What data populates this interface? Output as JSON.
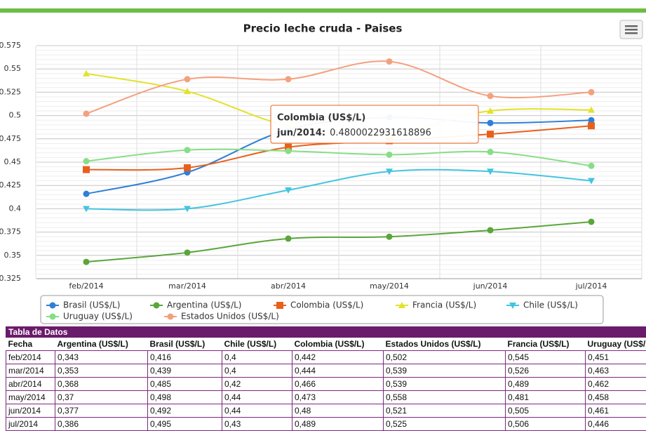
{
  "chart_data": {
    "type": "line",
    "title": "Precio leche cruda - Paises",
    "categories": [
      "feb/2014",
      "mar/2014",
      "abr/2014",
      "may/2014",
      "jun/2014",
      "jul/2014"
    ],
    "ylim": [
      0.325,
      0.575
    ],
    "yticks": [
      0.325,
      0.35,
      0.375,
      0.4,
      0.425,
      0.45,
      0.475,
      0.5,
      0.525,
      0.55,
      0.575
    ],
    "grid": true,
    "series": [
      {
        "name": "Brasil (US$/L)",
        "color": "#2f7ed8",
        "marker": "circle",
        "values": [
          0.416,
          0.439,
          0.485,
          0.498,
          0.492,
          0.495
        ]
      },
      {
        "name": "Argentina (US$/L)",
        "color": "#5aa63a",
        "marker": "circle",
        "values": [
          0.343,
          0.353,
          0.368,
          0.37,
          0.377,
          0.386
        ]
      },
      {
        "name": "Colombia (US$/L)",
        "color": "#e8601c",
        "marker": "square",
        "values": [
          0.442,
          0.444,
          0.466,
          0.473,
          0.48,
          0.489
        ]
      },
      {
        "name": "Francia (US$/L)",
        "color": "#e2e22a",
        "marker": "triangle",
        "values": [
          0.545,
          0.526,
          0.489,
          0.481,
          0.505,
          0.506
        ]
      },
      {
        "name": "Chile (US$/L)",
        "color": "#44c4e0",
        "marker": "triangle-down",
        "values": [
          0.4,
          0.4,
          0.42,
          0.44,
          0.44,
          0.43
        ]
      },
      {
        "name": "Uruguay (US$/L)",
        "color": "#86de86",
        "marker": "circle",
        "values": [
          0.451,
          0.463,
          0.462,
          0.458,
          0.461,
          0.446
        ]
      },
      {
        "name": "Estados Unidos (US$/L)",
        "color": "#f4a07e",
        "marker": "circle",
        "values": [
          0.502,
          0.539,
          0.539,
          0.558,
          0.521,
          0.525
        ]
      }
    ],
    "tooltip": {
      "title": "Colombia (US$/L)",
      "label": "jun/2014:",
      "value": "0.4800022931618896"
    }
  },
  "table": {
    "title": "Tabla de Datos",
    "header": [
      "Fecha",
      "Argentina (US$/L)",
      "Brasil (US$/L)",
      "Chile (US$/L)",
      "Colombia (US$/L)",
      "Estados Unidos (US$/L)",
      "Francia (US$/L)",
      "Uruguay (US$/L)"
    ],
    "rows": [
      [
        "feb/2014",
        "0,343",
        "0,416",
        "0,4",
        "0,442",
        "0,502",
        "0,545",
        "0,451"
      ],
      [
        "mar/2014",
        "0,353",
        "0,439",
        "0,4",
        "0,444",
        "0,539",
        "0,526",
        "0,463"
      ],
      [
        "abr/2014",
        "0,368",
        "0,485",
        "0,42",
        "0,466",
        "0,539",
        "0,489",
        "0,462"
      ],
      [
        "may/2014",
        "0,37",
        "0,498",
        "0,44",
        "0,473",
        "0,558",
        "0,481",
        "0,458"
      ],
      [
        "jun/2014",
        "0,377",
        "0,492",
        "0,44",
        "0,48",
        "0,521",
        "0,505",
        "0,461"
      ],
      [
        "jul/2014",
        "0,386",
        "0,495",
        "0,43",
        "0,489",
        "0,525",
        "0,506",
        "0,446"
      ]
    ]
  }
}
